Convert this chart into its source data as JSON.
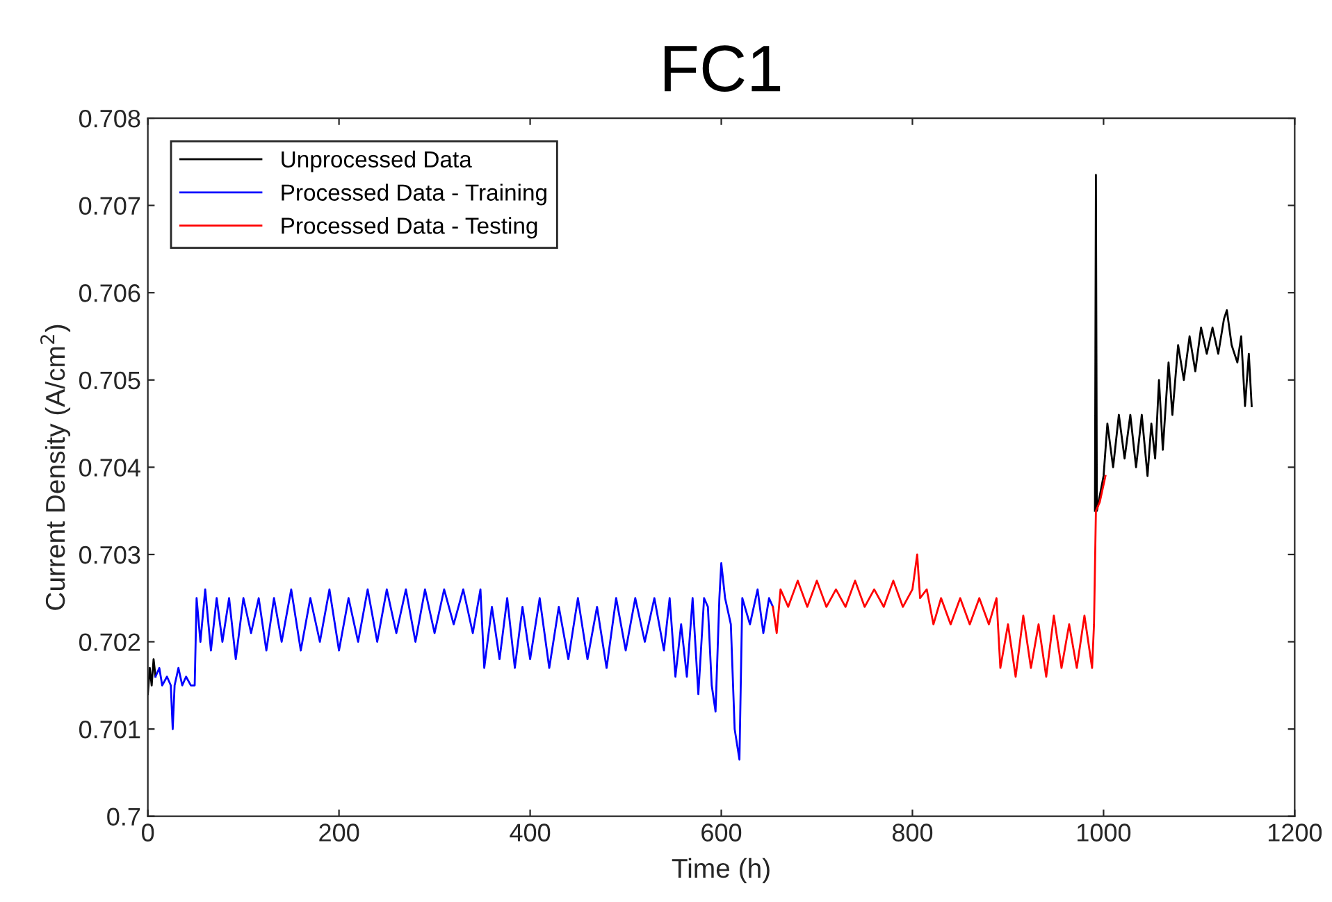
{
  "chart_data": {
    "type": "line",
    "title": "FC1",
    "xlabel": "Time (h)",
    "ylabel": "Current Density (A/cm$^{2}$)",
    "xlim": [
      0,
      1200
    ],
    "xticks": [
      0,
      200,
      400,
      600,
      800,
      1000,
      1200
    ],
    "ylim": [
      0.7,
      0.708
    ],
    "yticks": [
      0.7,
      0.701,
      0.702,
      0.703,
      0.704,
      0.705,
      0.706,
      0.707,
      0.708
    ],
    "legend": "top left",
    "grid": false,
    "marker": "none",
    "line_style": "solid",
    "series": [
      {
        "name": "Unprocessed Data",
        "color": "#000000",
        "x": [
          0,
          2,
          4,
          6,
          8,
          9,
          991,
          992,
          993,
          1000,
          1004,
          1010,
          1016,
          1022,
          1028,
          1034,
          1040,
          1046,
          1050,
          1054,
          1058,
          1062,
          1068,
          1072,
          1078,
          1084,
          1090,
          1096,
          1102,
          1108,
          1114,
          1120,
          1126,
          1129,
          1134,
          1140,
          1144,
          1148,
          1152,
          1155
        ],
        "values": [
          0.7014,
          0.7017,
          0.7015,
          0.7018,
          0.7016,
          null,
          0.7035,
          0.70735,
          0.7035,
          0.7039,
          0.7045,
          0.704,
          0.7046,
          0.7041,
          0.7046,
          0.704,
          0.7046,
          0.7039,
          0.7045,
          0.7041,
          0.705,
          0.7042,
          0.7052,
          0.7046,
          0.7054,
          0.705,
          0.7055,
          0.7051,
          0.7056,
          0.7053,
          0.7056,
          0.7053,
          0.7057,
          0.7058,
          0.7054,
          0.7052,
          0.7055,
          0.7047,
          0.7053,
          0.7047
        ]
      },
      {
        "name": "Processed Data - Training",
        "color": "#0000ff",
        "x": [
          8,
          12,
          15,
          20,
          24,
          26,
          28,
          32,
          36,
          40,
          45,
          49,
          51,
          55,
          60,
          66,
          72,
          78,
          85,
          92,
          100,
          108,
          116,
          124,
          132,
          140,
          150,
          160,
          170,
          180,
          190,
          200,
          210,
          220,
          230,
          240,
          250,
          260,
          270,
          280,
          290,
          300,
          310,
          320,
          330,
          340,
          348,
          352,
          360,
          368,
          376,
          384,
          392,
          400,
          410,
          420,
          430,
          440,
          450,
          460,
          470,
          480,
          490,
          500,
          510,
          520,
          530,
          540,
          546,
          552,
          558,
          564,
          570,
          576,
          582,
          586,
          590,
          594,
          598,
          600,
          604,
          610,
          614,
          619,
          622,
          630,
          638,
          644,
          650,
          654
        ],
        "values": [
          0.7016,
          0.7017,
          0.7015,
          0.7016,
          0.7015,
          0.701,
          0.7015,
          0.7017,
          0.7015,
          0.7016,
          0.7015,
          0.7015,
          0.7025,
          0.702,
          0.7026,
          0.7019,
          0.7025,
          0.702,
          0.7025,
          0.7018,
          0.7025,
          0.7021,
          0.7025,
          0.7019,
          0.7025,
          0.702,
          0.7026,
          0.7019,
          0.7025,
          0.702,
          0.7026,
          0.7019,
          0.7025,
          0.702,
          0.7026,
          0.702,
          0.7026,
          0.7021,
          0.7026,
          0.702,
          0.7026,
          0.7021,
          0.7026,
          0.7022,
          0.7026,
          0.7021,
          0.7026,
          0.7017,
          0.7024,
          0.7018,
          0.7025,
          0.7017,
          0.7024,
          0.7018,
          0.7025,
          0.7017,
          0.7024,
          0.7018,
          0.7025,
          0.7018,
          0.7024,
          0.7017,
          0.7025,
          0.7019,
          0.7025,
          0.702,
          0.7025,
          0.7019,
          0.7025,
          0.7016,
          0.7022,
          0.7016,
          0.7025,
          0.7014,
          0.7025,
          0.7024,
          0.7015,
          0.7012,
          0.7025,
          0.7029,
          0.7025,
          0.7022,
          0.701,
          0.70065,
          0.7025,
          0.7022,
          0.7026,
          0.7021,
          0.7025,
          0.7024
        ]
      },
      {
        "name": "Processed Data - Testing",
        "color": "#ff0000",
        "x": [
          654,
          658,
          662,
          670,
          680,
          690,
          700,
          710,
          720,
          730,
          740,
          750,
          760,
          770,
          780,
          790,
          800,
          805,
          808,
          815,
          822,
          830,
          840,
          850,
          860,
          870,
          880,
          888,
          892,
          900,
          908,
          916,
          924,
          932,
          940,
          948,
          956,
          964,
          972,
          980,
          988,
          990,
          992,
          996,
          1002
        ],
        "values": [
          0.7024,
          0.7021,
          0.7026,
          0.7024,
          0.7027,
          0.7024,
          0.7027,
          0.7024,
          0.7026,
          0.7024,
          0.7027,
          0.7024,
          0.7026,
          0.7024,
          0.7027,
          0.7024,
          0.7026,
          0.703,
          0.7025,
          0.7026,
          0.7022,
          0.7025,
          0.7022,
          0.7025,
          0.7022,
          0.7025,
          0.7022,
          0.7025,
          0.7017,
          0.7022,
          0.7016,
          0.7023,
          0.7017,
          0.7022,
          0.7016,
          0.7023,
          0.7017,
          0.7022,
          0.7017,
          0.7023,
          0.7017,
          0.7022,
          0.7035,
          0.7036,
          0.7039
        ]
      }
    ]
  }
}
